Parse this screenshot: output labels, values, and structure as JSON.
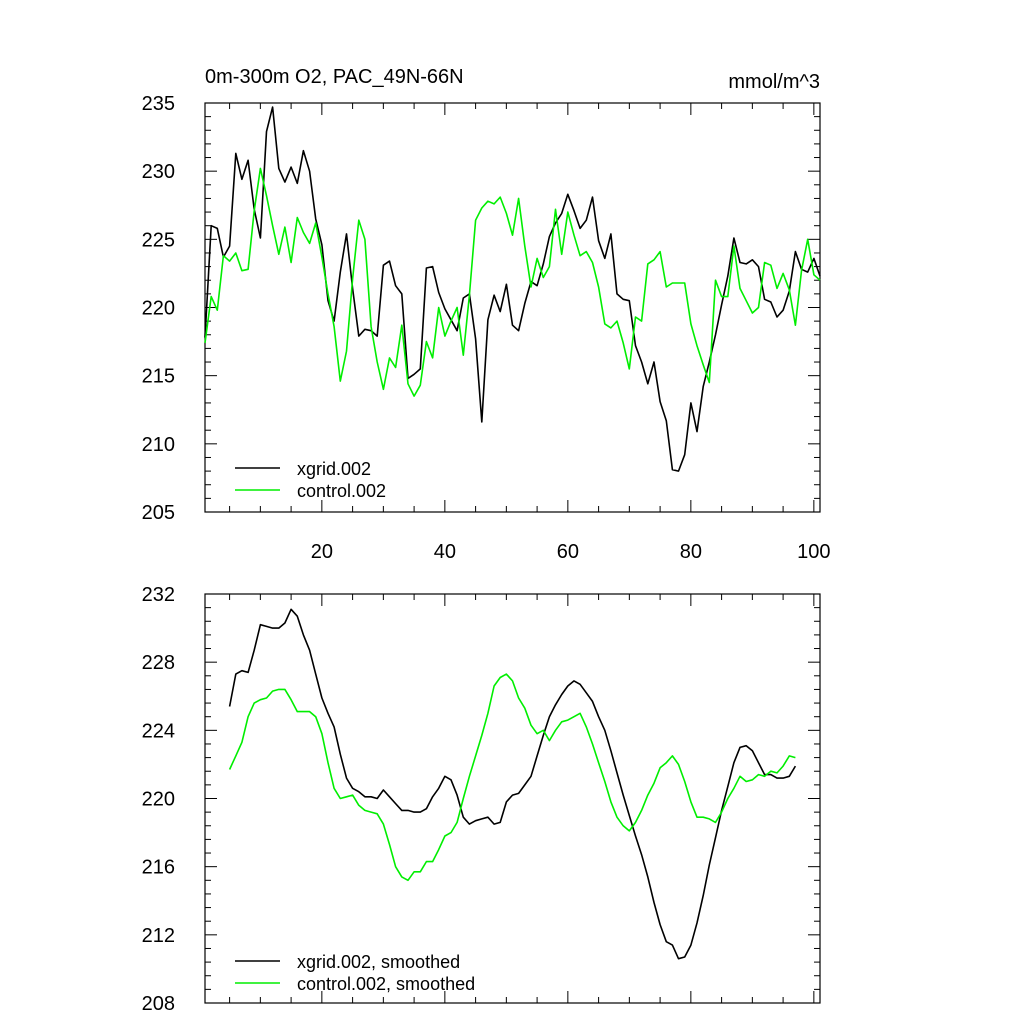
{
  "chart_data": [
    {
      "type": "line",
      "title_left": "0m-300m O2, PAC_49N-66N",
      "title_right": "mmol/m^3",
      "xlabel": "",
      "ylabel": "",
      "xlim": [
        1,
        101
      ],
      "ylim": [
        205,
        235
      ],
      "xticks": [
        20,
        40,
        60,
        80,
        100
      ],
      "xtick_labels": [
        "20",
        "40",
        "60",
        "80",
        "100"
      ],
      "yticks": [
        205,
        210,
        215,
        220,
        225,
        230,
        235
      ],
      "ytick_labels": [
        "205",
        "210",
        "215",
        "220",
        "225",
        "230",
        "235"
      ],
      "legend_position": "bottom-left",
      "series": [
        {
          "name": "xgrid.002",
          "color": "#000000",
          "x": [
            1,
            2,
            3,
            4,
            5,
            6,
            7,
            8,
            9,
            10,
            11,
            12,
            13,
            14,
            15,
            16,
            17,
            18,
            19,
            20,
            21,
            22,
            23,
            24,
            25,
            26,
            27,
            28,
            29,
            30,
            31,
            32,
            33,
            34,
            35,
            36,
            37,
            38,
            39,
            40,
            41,
            42,
            43,
            44,
            45,
            46,
            47,
            48,
            49,
            50,
            51,
            52,
            53,
            54,
            55,
            56,
            57,
            58,
            59,
            60,
            61,
            62,
            63,
            64,
            65,
            66,
            67,
            68,
            69,
            70,
            71,
            72,
            73,
            74,
            75,
            76,
            77,
            78,
            79,
            80,
            81,
            82,
            83,
            84,
            85,
            86,
            87,
            88,
            89,
            90,
            91,
            92,
            93,
            94,
            95,
            96,
            97,
            98,
            99,
            100,
            101
          ],
          "values": [
            217.8,
            226.0,
            225.8,
            223.7,
            224.5,
            231.3,
            229.4,
            230.8,
            227.2,
            225.1,
            232.9,
            234.7,
            230.2,
            229.2,
            230.3,
            229.1,
            231.5,
            230.0,
            226.5,
            224.6,
            220.5,
            219.0,
            222.6,
            225.4,
            221.4,
            217.9,
            218.4,
            218.3,
            217.9,
            223.1,
            223.4,
            221.6,
            221.0,
            214.8,
            215.1,
            215.5,
            222.9,
            223.0,
            221.1,
            219.9,
            219.1,
            218.3,
            220.7,
            221.0,
            217.7,
            211.6,
            219.1,
            220.9,
            219.7,
            221.7,
            218.7,
            218.3,
            220.3,
            221.9,
            221.6,
            223.2,
            225.2,
            226.2,
            226.9,
            228.3,
            227.1,
            225.8,
            226.4,
            228.1,
            224.9,
            223.6,
            225.4,
            221.0,
            220.6,
            220.5,
            217.2,
            216.0,
            214.4,
            216.0,
            213.1,
            211.7,
            208.1,
            208.0,
            209.2,
            213.0,
            210.9,
            214.2,
            216.0,
            218.0,
            220.2,
            222.3,
            225.1,
            223.3,
            223.2,
            223.5,
            223.0,
            220.6,
            220.4,
            219.3,
            219.8,
            221.2,
            224.1,
            222.8,
            222.6,
            223.6,
            222.3
          ]
        },
        {
          "name": "control.002",
          "color": "#00ee00",
          "x": [
            1,
            2,
            3,
            4,
            5,
            6,
            7,
            8,
            9,
            10,
            11,
            12,
            13,
            14,
            15,
            16,
            17,
            18,
            19,
            20,
            21,
            22,
            23,
            24,
            25,
            26,
            27,
            28,
            29,
            30,
            31,
            32,
            33,
            34,
            35,
            36,
            37,
            38,
            39,
            40,
            41,
            42,
            43,
            44,
            45,
            46,
            47,
            48,
            49,
            50,
            51,
            52,
            53,
            54,
            55,
            56,
            57,
            58,
            59,
            60,
            61,
            62,
            63,
            64,
            65,
            66,
            67,
            68,
            69,
            70,
            71,
            72,
            73,
            74,
            75,
            76,
            77,
            78,
            79,
            80,
            81,
            82,
            83,
            84,
            85,
            86,
            87,
            88,
            89,
            90,
            91,
            92,
            93,
            94,
            95,
            96,
            97,
            98,
            99,
            100,
            101
          ],
          "values": [
            217.4,
            220.8,
            219.8,
            223.8,
            223.4,
            224.0,
            222.7,
            222.8,
            227.1,
            230.2,
            228.2,
            226.0,
            223.9,
            225.9,
            223.3,
            226.6,
            225.5,
            224.7,
            226.2,
            223.7,
            221.0,
            218.6,
            214.6,
            216.8,
            222.1,
            226.4,
            225.0,
            218.6,
            216.0,
            214.0,
            216.3,
            215.6,
            218.7,
            214.4,
            213.5,
            214.3,
            217.5,
            216.3,
            220.0,
            217.9,
            219.0,
            220.0,
            216.5,
            220.9,
            226.4,
            227.3,
            227.8,
            227.6,
            228.1,
            226.9,
            225.3,
            228.0,
            224.5,
            221.5,
            223.6,
            222.2,
            223.0,
            227.2,
            223.9,
            227.0,
            225.3,
            223.8,
            224.1,
            223.3,
            221.5,
            218.8,
            218.5,
            219.0,
            217.4,
            215.5,
            219.3,
            219.0,
            223.2,
            223.5,
            224.1,
            221.5,
            221.8,
            221.8,
            221.8,
            218.8,
            217.2,
            215.8,
            214.5,
            222.0,
            220.8,
            220.8,
            224.5,
            221.4,
            220.5,
            219.6,
            220.0,
            223.3,
            223.1,
            221.4,
            222.5,
            221.3,
            218.7,
            222.7,
            225.0,
            222.4,
            222.0
          ]
        }
      ]
    },
    {
      "type": "line",
      "title_left": "",
      "title_right": "",
      "xlabel": "",
      "ylabel": "",
      "xlim": [
        1,
        101
      ],
      "ylim": [
        208,
        232
      ],
      "xticks": [
        20,
        40,
        60,
        80,
        100
      ],
      "xtick_labels": [],
      "yticks": [
        208,
        212,
        216,
        220,
        224,
        228,
        232
      ],
      "ytick_labels": [
        "208",
        "212",
        "216",
        "220",
        "224",
        "228",
        "232"
      ],
      "legend_position": "bottom-left",
      "series": [
        {
          "name": "xgrid.002, smoothed",
          "color": "#000000",
          "x": [
            5,
            6,
            7,
            8,
            9,
            10,
            11,
            12,
            13,
            14,
            15,
            16,
            17,
            18,
            19,
            20,
            21,
            22,
            23,
            24,
            25,
            26,
            27,
            28,
            29,
            30,
            31,
            32,
            33,
            34,
            35,
            36,
            37,
            38,
            39,
            40,
            41,
            42,
            43,
            44,
            45,
            46,
            47,
            48,
            49,
            50,
            51,
            52,
            53,
            54,
            55,
            56,
            57,
            58,
            59,
            60,
            61,
            62,
            63,
            64,
            65,
            66,
            67,
            68,
            69,
            70,
            71,
            72,
            73,
            74,
            75,
            76,
            77,
            78,
            79,
            80,
            81,
            82,
            83,
            84,
            85,
            86,
            87,
            88,
            89,
            90,
            91,
            92,
            93,
            94,
            95,
            96,
            97
          ],
          "values": [
            225.4,
            227.3,
            227.5,
            227.4,
            228.7,
            230.2,
            230.1,
            230.0,
            230.0,
            230.3,
            231.1,
            230.7,
            229.6,
            228.7,
            227.3,
            225.9,
            225.0,
            224.2,
            222.6,
            221.2,
            220.6,
            220.4,
            220.1,
            220.1,
            220.0,
            220.5,
            220.1,
            219.7,
            219.3,
            219.3,
            219.2,
            219.2,
            219.4,
            220.1,
            220.6,
            221.3,
            221.1,
            220.2,
            218.9,
            218.5,
            218.7,
            218.8,
            218.9,
            218.5,
            218.6,
            219.8,
            220.2,
            220.3,
            220.8,
            221.3,
            222.5,
            223.7,
            224.8,
            225.5,
            226.1,
            226.6,
            226.9,
            226.7,
            226.2,
            225.7,
            224.8,
            224.0,
            222.8,
            221.5,
            220.2,
            219.0,
            217.8,
            216.7,
            215.4,
            213.9,
            212.6,
            211.6,
            211.4,
            210.6,
            210.7,
            211.4,
            212.7,
            214.3,
            216.1,
            217.7,
            219.3,
            220.7,
            222.1,
            223.0,
            223.1,
            222.8,
            222.1,
            221.4,
            221.4,
            221.2,
            221.2,
            221.3,
            221.9
          ]
        },
        {
          "name": "control.002, smoothed",
          "color": "#00ee00",
          "x": [
            5,
            6,
            7,
            8,
            9,
            10,
            11,
            12,
            13,
            14,
            15,
            16,
            17,
            18,
            19,
            20,
            21,
            22,
            23,
            24,
            25,
            26,
            27,
            28,
            29,
            30,
            31,
            32,
            33,
            34,
            35,
            36,
            37,
            38,
            39,
            40,
            41,
            42,
            43,
            44,
            45,
            46,
            47,
            48,
            49,
            50,
            51,
            52,
            53,
            54,
            55,
            56,
            57,
            58,
            59,
            60,
            61,
            62,
            63,
            64,
            65,
            66,
            67,
            68,
            69,
            70,
            71,
            72,
            73,
            74,
            75,
            76,
            77,
            78,
            79,
            80,
            81,
            82,
            83,
            84,
            85,
            86,
            87,
            88,
            89,
            90,
            91,
            92,
            93,
            94,
            95,
            96,
            97
          ],
          "values": [
            221.7,
            222.5,
            223.3,
            224.8,
            225.6,
            225.8,
            225.9,
            226.3,
            226.4,
            226.4,
            225.8,
            225.1,
            225.1,
            225.1,
            224.8,
            223.8,
            222.1,
            220.6,
            220.0,
            220.1,
            220.2,
            219.6,
            219.3,
            219.2,
            219.1,
            218.5,
            217.3,
            216.0,
            215.4,
            215.2,
            215.7,
            215.7,
            216.3,
            216.3,
            217.0,
            217.8,
            218.0,
            218.6,
            220.0,
            221.3,
            222.5,
            223.7,
            225.0,
            226.6,
            227.1,
            227.3,
            226.9,
            225.9,
            225.3,
            224.3,
            223.8,
            224.0,
            223.4,
            224.0,
            224.5,
            224.6,
            224.8,
            225.0,
            224.2,
            223.2,
            222.1,
            221.0,
            219.8,
            218.9,
            218.4,
            218.1,
            218.6,
            219.3,
            220.2,
            220.9,
            221.8,
            222.1,
            222.5,
            222.0,
            221.0,
            219.8,
            218.9,
            218.9,
            218.8,
            218.6,
            219.2,
            220.0,
            220.6,
            221.3,
            221.0,
            221.1,
            221.4,
            221.3,
            221.6,
            221.5,
            221.9,
            222.5,
            222.4
          ]
        }
      ]
    }
  ]
}
